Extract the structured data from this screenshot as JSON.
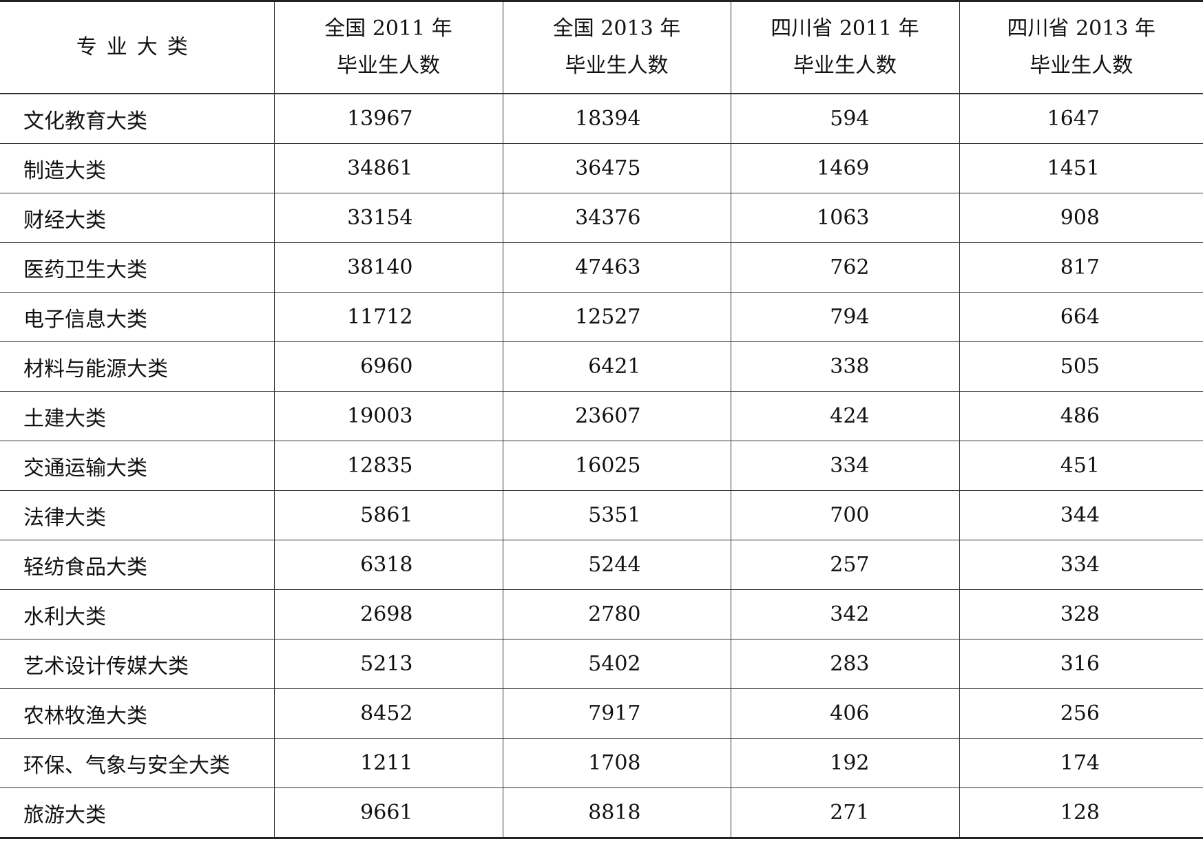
{
  "table": {
    "headers": [
      {
        "line1": "专业大类",
        "line2": ""
      },
      {
        "line1": "全国 2011 年",
        "line2": "毕业生人数"
      },
      {
        "line1": "全国 2013 年",
        "line2": "毕业生人数"
      },
      {
        "line1": "四川省 2011 年",
        "line2": "毕业生人数"
      },
      {
        "line1": "四川省 2013 年",
        "line2": "毕业生人数"
      }
    ],
    "rows": [
      [
        "文化教育大类",
        "13967",
        "18394",
        "594",
        "1647"
      ],
      [
        "制造大类",
        "34861",
        "36475",
        "1469",
        "1451"
      ],
      [
        "财经大类",
        "33154",
        "34376",
        "1063",
        "908"
      ],
      [
        "医药卫生大类",
        "38140",
        "47463",
        "762",
        "817"
      ],
      [
        "电子信息大类",
        "11712",
        "12527",
        "794",
        "664"
      ],
      [
        "材料与能源大类",
        "6960",
        "6421",
        "338",
        "505"
      ],
      [
        "土建大类",
        "19003",
        "23607",
        "424",
        "486"
      ],
      [
        "交通运输大类",
        "12835",
        "16025",
        "334",
        "451"
      ],
      [
        "法律大类",
        "5861",
        "5351",
        "700",
        "344"
      ],
      [
        "轻纺食品大类",
        "6318",
        "5244",
        "257",
        "334"
      ],
      [
        "水利大类",
        "2698",
        "2780",
        "342",
        "328"
      ],
      [
        "艺术设计传媒大类",
        "5213",
        "5402",
        "283",
        "316"
      ],
      [
        "农林牧渔大类",
        "8452",
        "7917",
        "406",
        "256"
      ],
      [
        "环保、气象与安全大类",
        "1211",
        "1708",
        "192",
        "174"
      ],
      [
        "旅游大类",
        "9661",
        "8818",
        "271",
        "128"
      ]
    ]
  }
}
